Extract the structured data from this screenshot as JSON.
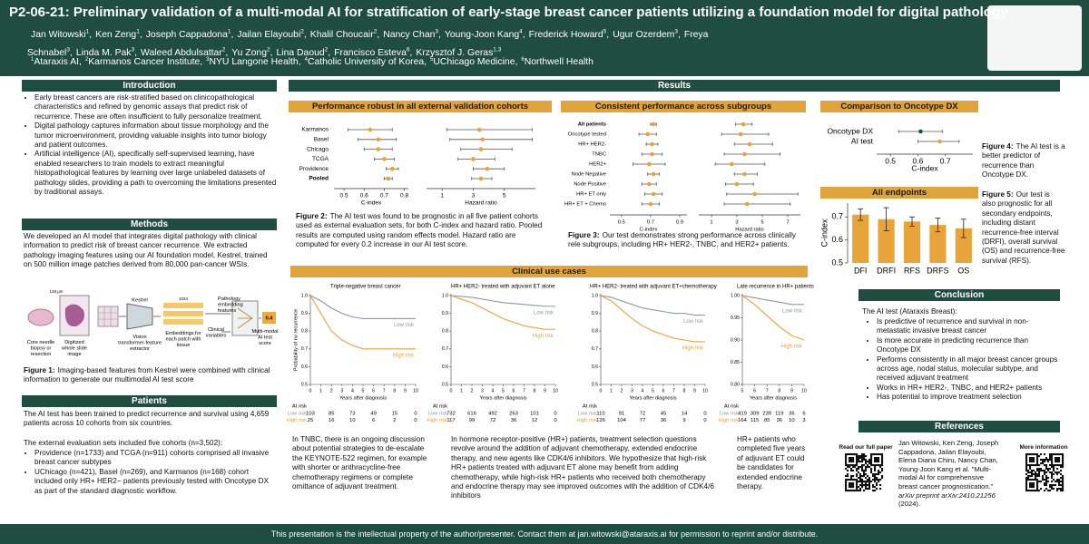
{
  "header": {
    "title": "P2-06-21: Preliminary validation of a multi-modal AI for stratification of early-stage breast cancer patients utilizing a foundation model for digital pathology",
    "authors": [
      {
        "name": "Jan Witowski",
        "aff": "1"
      },
      {
        "name": "Ken Zeng",
        "aff": "1"
      },
      {
        "name": "Joseph Cappadona",
        "aff": "1"
      },
      {
        "name": "Jailan Elayoubi",
        "aff": "2"
      },
      {
        "name": "Khalil Choucair",
        "aff": "2"
      },
      {
        "name": "Nancy Chan",
        "aff": "3"
      },
      {
        "name": "Young-Joon Kang",
        "aff": "4"
      },
      {
        "name": "Frederick Howard",
        "aff": "5"
      },
      {
        "name": "Ugur Ozerdem",
        "aff": "3"
      },
      {
        "name": "Freya Schnabel",
        "aff": "3"
      },
      {
        "name": "Linda M. Pak",
        "aff": "3"
      },
      {
        "name": "Waleed Abdulsattar",
        "aff": "2"
      },
      {
        "name": "Yu Zong",
        "aff": "2"
      },
      {
        "name": "Lina Daoud",
        "aff": "2"
      },
      {
        "name": "Francisco Esteva",
        "aff": "6"
      },
      {
        "name": "Krzysztof J. Geras",
        "aff": "1,3"
      }
    ],
    "affiliations": [
      {
        "num": "1",
        "name": "Ataraxis AI"
      },
      {
        "num": "2",
        "name": "Karmanos Cancer Institute"
      },
      {
        "num": "3",
        "name": "NYU Langone Health"
      },
      {
        "num": "4",
        "name": "Catholic University of Korea"
      },
      {
        "num": "5",
        "name": "UChicago Medicine"
      },
      {
        "num": "6",
        "name": "Northwell Health"
      }
    ]
  },
  "introduction": {
    "title": "Introduction",
    "bullets": [
      "Early breast cancers are risk-stratified based on clinicopathological characteristics and refined by genomic assays that predict risk of recurrence. These are often insufficient to fully personalize treatment.",
      "Digital pathology captures information about tissue morphology and the tumor microenvironment, providing valuable insights into tumor biology and patient outcomes.",
      "Artificial intelligence (AI), specifically self-supervised learning, have enabled researchers to train models to extract meaningful histopathological features by learning over large unlabeled datasets of pathology slides, providing a path to overcoming the limitations presented by traditional assays."
    ]
  },
  "methods": {
    "title": "Methods",
    "text": "We developed an AI model that integrates digital pathology with clinical information to predict risk of breast cancer recurrence. We extracted pathology imaging features using our AI foundation model, Kestrel, trained on 500 million image patches derived from 80,000 pan-cancer WSIs.",
    "diagram": {
      "biopsy": "Core needle biopsy or resection",
      "slide": "Digitized whole slide image",
      "scale": "128 μm",
      "kestrel": "Kestrel",
      "extractor": "Vision transformer-feature extractor",
      "dim": "1024",
      "embeddings": "Embeddings for each patch with tissue",
      "path_features": "Pathology embedding features",
      "clinical": "Clinical variables",
      "score": "0.4",
      "score_label": "Multi-modal AI test score"
    },
    "caption": {
      "label": "Figure 1:",
      "text": "Imaging-based features from Kestrel  were combined with clinical information to generate our multimodal AI test score"
    }
  },
  "patients": {
    "title": "Patients",
    "p1": "The AI test has been trained to predict recurrence and survival using 4,659 patients across 10 cohorts from six countries.",
    "p2": "The external evaluation sets included five cohorts (n=3,502):",
    "bullets": [
      "Providence (n=1733) and TCGA (n=911) cohorts comprised all invasive breast cancer subtypes",
      "UChicago (n=421), Basel (n=269), and Karmanos (n=168) cohort included only HR+ HER2− patients previously tested with Oncotype DX as part of the standard diagnostic workflow."
    ]
  },
  "results": {
    "title": "Results",
    "panels": [
      "Performance robust in all external validation cohorts",
      "Consistent performance across subgroups",
      "Comparison to Oncotype DX",
      "All endpoints",
      "Clinical use cases"
    ],
    "fig2": {
      "label": "Figure 2:",
      "text": "The AI test was found to be prognostic in all five patient cohorts used as external evaluation sets, for both C-index and hazard ratio. Pooled results are computed using random effects model. Hazard ratio are computed for every 0.2 increase in our AI test score."
    },
    "fig3": {
      "label": "Figure 3:",
      "text": "Our test demonstrates strong performance across clinically rele subgroups, including HR+ HER2-, TNBC, and HER2+ patients."
    },
    "fig4": {
      "label": "Figure 4:",
      "text": "The AI test is a better predictor of recurrence than Oncotype DX."
    },
    "fig5": {
      "label": "Figure 5:",
      "text": "Our test is also prognostic for all secondary endpoints, including distant recurrence-free interval (DRFI), overall survival (OS) and recurrence-free survival (RFS)."
    },
    "use_texts": [
      "In TNBC, there is an ongoing discussion about potential strategies to de-escalate the KEYNOTE-522 regimen, for example with shorter or anthracycline-free chemotherapy regimens or complete omittance of adjuvant treatment.",
      "In hormone receptor-positive (HR+) patients, treatment selection questions revolve around the addition of adjuvant chemotherapy, extended endocrine therapy, and new agents like CDK4/6 inhibitors. We hypothesize that high-risk HR+ patients treated with adjuvant ET alone may benefit from adding chemotherapy, while high-risk HR+ patients who received both chemotherapy and endocrine therapy may see improved outcomes with the addition of CDK4/6 inhibitors",
      "HR+ patients who completed five years of adjuvant ET could be candidates for extended endocrine therapy."
    ]
  },
  "chart_data": [
    {
      "type": "forest",
      "categories": [
        "Karmanos",
        "Basel",
        "Chicago",
        "TCGA",
        "Providence",
        "Pooled"
      ],
      "bold_rows": [
        5
      ],
      "values": [
        0.63,
        0.67,
        0.67,
        0.7,
        0.74,
        0.72
      ],
      "lower": [
        0.52,
        0.57,
        0.6,
        0.65,
        0.71,
        0.7
      ],
      "upper": [
        0.74,
        0.76,
        0.74,
        0.75,
        0.77,
        0.74
      ],
      "xlim": [
        0.45,
        0.82
      ],
      "xticks": [
        0.5,
        0.6,
        0.7,
        0.8
      ],
      "xlabel": "C-index",
      "color": "#e8a33a"
    },
    {
      "type": "forest",
      "values": [
        3.4,
        3.6,
        3.5,
        3.0,
        3.9,
        3.5
      ],
      "lower": [
        1.3,
        1.5,
        2.2,
        2.0,
        3.0,
        2.9
      ],
      "upper": [
        6.8,
        6.8,
        5.5,
        4.4,
        5.0,
        4.2
      ],
      "xlim": [
        0,
        7
      ],
      "xticks": [
        1,
        3,
        5
      ],
      "xlabel": "Hazard ratio",
      "color": "#e8a33a"
    },
    {
      "type": "forest",
      "categories": [
        "All patients",
        "Oncotype tested",
        "HR+ HER2-",
        "TNBC",
        "HER2+",
        "Node Negative",
        "Node Positive",
        "HR+ ET only",
        "HR+ ET + Chemo"
      ],
      "bold_rows": [
        0
      ],
      "values": [
        0.72,
        0.68,
        0.71,
        0.71,
        0.69,
        0.72,
        0.69,
        0.72,
        0.7
      ],
      "lower": [
        0.7,
        0.62,
        0.67,
        0.64,
        0.58,
        0.68,
        0.64,
        0.66,
        0.64
      ],
      "upper": [
        0.74,
        0.74,
        0.75,
        0.78,
        0.8,
        0.76,
        0.74,
        0.78,
        0.76
      ],
      "xlim": [
        0.42,
        0.95
      ],
      "xticks": [
        0.5,
        0.7,
        0.9
      ],
      "xlabel": "C-index",
      "color": "#e8a33a"
    },
    {
      "type": "forest",
      "values": [
        3.5,
        3.3,
        4.0,
        3.6,
        2.6,
        3.6,
        3.0,
        4.4,
        3.8
      ],
      "lower": [
        2.9,
        1.8,
        2.8,
        2.0,
        1.3,
        2.8,
        2.1,
        2.2,
        2.0
      ],
      "upper": [
        4.2,
        5.5,
        5.8,
        6.4,
        5.2,
        4.6,
        4.3,
        7.8,
        7.2
      ],
      "xlim": [
        0,
        8
      ],
      "xticks": [
        1,
        3,
        5,
        7
      ],
      "xlabel": "Hazard ratio",
      "color": "#e8a33a"
    },
    {
      "type": "forest",
      "categories": [
        "Oncotype DX",
        "AI test"
      ],
      "values": [
        0.61,
        0.68
      ],
      "lower": [
        0.53,
        0.6
      ],
      "upper": [
        0.69,
        0.75
      ],
      "point_colors": [
        "#1f4d3f",
        "#e8a33a"
      ],
      "xlim": [
        0.45,
        0.8
      ],
      "xticks": [
        0.5,
        0.6,
        0.7
      ],
      "xlabel": "C-index",
      "color": "#e8a33a"
    },
    {
      "type": "bar",
      "categories": [
        "DFI",
        "DRFI",
        "RFS",
        "DRFS",
        "OS"
      ],
      "values": [
        0.71,
        0.69,
        0.68,
        0.665,
        0.65
      ],
      "errors": [
        0.025,
        0.05,
        0.02,
        0.03,
        0.04
      ],
      "ylim": [
        0.5,
        0.76
      ],
      "yticks": [
        0.5,
        0.6,
        0.7
      ],
      "ylabel": "C-index",
      "color": "#e8a33a"
    },
    {
      "type": "line",
      "title": "Triple-negative breast cancer",
      "ylabel": "Probability of no recurrence",
      "xlabel": "Years after diagnosis",
      "x": [
        0,
        1,
        2,
        3,
        4,
        5,
        6,
        7,
        8,
        9,
        10
      ],
      "xlim": [
        0,
        10
      ],
      "xticks": [
        0,
        1,
        2,
        3,
        4,
        5,
        6,
        7,
        8,
        9,
        10
      ],
      "ylim": [
        0.5,
        1
      ],
      "yticks": [
        0.5,
        0.6,
        0.7,
        0.8,
        0.9,
        {
          "value": 1,
          "label": "1.0"
        }
      ],
      "series": [
        {
          "name": "Low risk",
          "color": "#8a98ad",
          "values": [
            1,
            0.97,
            0.93,
            0.9,
            0.88,
            0.87,
            0.87,
            0.87,
            0.87,
            0.87,
            0.87
          ]
        },
        {
          "name": "High risk",
          "color": "#e8a33a",
          "values": [
            1,
            0.9,
            0.8,
            0.75,
            0.72,
            0.7,
            0.7,
            0.7,
            0.7,
            0.7,
            0.7
          ]
        }
      ],
      "at_risk": {
        "label": "At risk",
        "x": [
          0,
          2,
          4,
          6,
          8,
          10
        ],
        "rows": [
          {
            "name": "Low risk",
            "values": [
              103,
              85,
              73,
              49,
              15,
              0
            ]
          },
          {
            "name": "High risk",
            "values": [
              25,
              16,
              10,
              6,
              2,
              0
            ]
          }
        ]
      }
    },
    {
      "type": "line",
      "title": "HR+ HER2- treated with adjuvant ET alone",
      "xlabel": "Years after diagnosis",
      "x": [
        0,
        1,
        2,
        3,
        4,
        5,
        6,
        7,
        8,
        9,
        10
      ],
      "xlim": [
        0,
        10
      ],
      "xticks": [
        0,
        1,
        2,
        3,
        4,
        5,
        6,
        7,
        8,
        9,
        10
      ],
      "ylim": [
        0.5,
        1
      ],
      "yticks": [
        0.5,
        0.6,
        0.7,
        0.8,
        0.9,
        {
          "value": 1,
          "label": "1.0"
        }
      ],
      "series": [
        {
          "name": "Low risk",
          "color": "#8a98ad",
          "values": [
            1,
            0.995,
            0.99,
            0.98,
            0.97,
            0.96,
            0.955,
            0.95,
            0.945,
            0.94,
            0.94
          ]
        },
        {
          "name": "High risk",
          "color": "#e8a33a",
          "values": [
            1,
            0.98,
            0.96,
            0.93,
            0.9,
            0.87,
            0.85,
            0.83,
            0.82,
            0.81,
            0.81
          ]
        }
      ],
      "at_risk": {
        "label": "At risk",
        "x": [
          0,
          2,
          4,
          6,
          8,
          10
        ],
        "rows": [
          {
            "name": "Low risk",
            "values": [
              732,
              616,
              492,
              263,
              101,
              0
            ]
          },
          {
            "name": "High risk",
            "values": [
              117,
              99,
              72,
              36,
              12,
              0
            ]
          }
        ]
      }
    },
    {
      "type": "line",
      "title": "HR+ HER2- treated with adjuvant ET+chemotherapy",
      "xlabel": "Years after diagnosis",
      "x": [
        0,
        1,
        2,
        3,
        4,
        5,
        6,
        7,
        8,
        9,
        10
      ],
      "xlim": [
        0,
        10
      ],
      "xticks": [
        0,
        1,
        2,
        3,
        4,
        5,
        6,
        7,
        8,
        9,
        10
      ],
      "ylim": [
        0.5,
        1
      ],
      "yticks": [
        0.5,
        0.6,
        0.7,
        0.8,
        0.9,
        {
          "value": 1,
          "label": "1.0"
        }
      ],
      "series": [
        {
          "name": "Low risk",
          "color": "#8a98ad",
          "values": [
            1,
            0.99,
            0.97,
            0.95,
            0.93,
            0.92,
            0.91,
            0.9,
            0.9,
            0.89,
            0.89
          ]
        },
        {
          "name": "High risk",
          "color": "#e8a33a",
          "values": [
            1,
            0.97,
            0.92,
            0.87,
            0.83,
            0.8,
            0.78,
            0.76,
            0.75,
            0.74,
            0.74
          ]
        }
      ],
      "at_risk": {
        "label": "At risk",
        "x": [
          0,
          2,
          4,
          6,
          8,
          10
        ],
        "rows": [
          {
            "name": "Low risk",
            "values": [
              110,
              91,
              72,
              45,
              14,
              0
            ]
          },
          {
            "name": "High risk",
            "values": [
              126,
              104,
              77,
              36,
              9,
              0
            ]
          }
        ]
      }
    },
    {
      "type": "line",
      "title": "Late recurrence in HR+ patients",
      "xlabel": "Years after diagnosis",
      "x": [
        5,
        6,
        7,
        8,
        9,
        10
      ],
      "xlim": [
        5,
        10
      ],
      "xticks": [
        5,
        6,
        7,
        8,
        9,
        10
      ],
      "ylim": [
        0.8,
        1
      ],
      "yticks": [
        {
          "value": 0.8,
          "label": "0.80"
        },
        0.85,
        {
          "value": 0.9,
          "label": "0.90"
        },
        0.95,
        {
          "value": 1,
          "label": "1.00"
        }
      ],
      "series": [
        {
          "name": "Low risk",
          "color": "#8a98ad",
          "values": [
            1,
            0.995,
            0.99,
            0.985,
            0.98,
            0.98
          ]
        },
        {
          "name": "High risk",
          "color": "#e8a33a",
          "values": [
            1,
            0.98,
            0.955,
            0.93,
            0.91,
            0.9
          ]
        }
      ],
      "at_risk": {
        "label": "At risk",
        "x": [
          5,
          6,
          7,
          8,
          9,
          10
        ],
        "rows": [
          {
            "name": "Low risk",
            "values": [
              419,
              309,
              239,
              119,
              36,
              6
            ]
          },
          {
            "name": "High risk",
            "values": [
              164,
              115,
              85,
              36,
              10,
              3
            ]
          }
        ]
      }
    }
  ],
  "conclusion": {
    "title": "Conclusion",
    "intro": "The AI test (Ataraxis Breast):",
    "bullets": [
      "Is predictive of recurrence and survival in non-metastatic invasive breast cancer",
      "Is more accurate in predicting recurrence than Oncotype DX",
      "Performs consistently in all major breast cancer groups across age, nodal status, molecular subtype, and received adjuvant treatment",
      "Works in HR+ HER2-, TNBC, and HER2+ patients",
      "Has potential to improve treatment selection"
    ]
  },
  "references": {
    "title": "References",
    "paper_label": "Read our full paper",
    "info_label": "More information",
    "ref_pre": "Jan Witowski, Ken Zeng, Joseph Cappadona, Jailan Elayoubi, Elena Diana Chiru, Nancy Chan, Young-Joon Kang et al. \"Multi-modal AI for comprehensive breast cancer prognostication.\" ",
    "ref_italic": "arXiv preprint arXiv:2410.21256",
    "ref_post": " (2024)."
  },
  "footer": "This presentation is the intellectual property of the author/presenter. Contact them at jan.witowski@ataraxis.ai for permission to reprint and/or distribute."
}
